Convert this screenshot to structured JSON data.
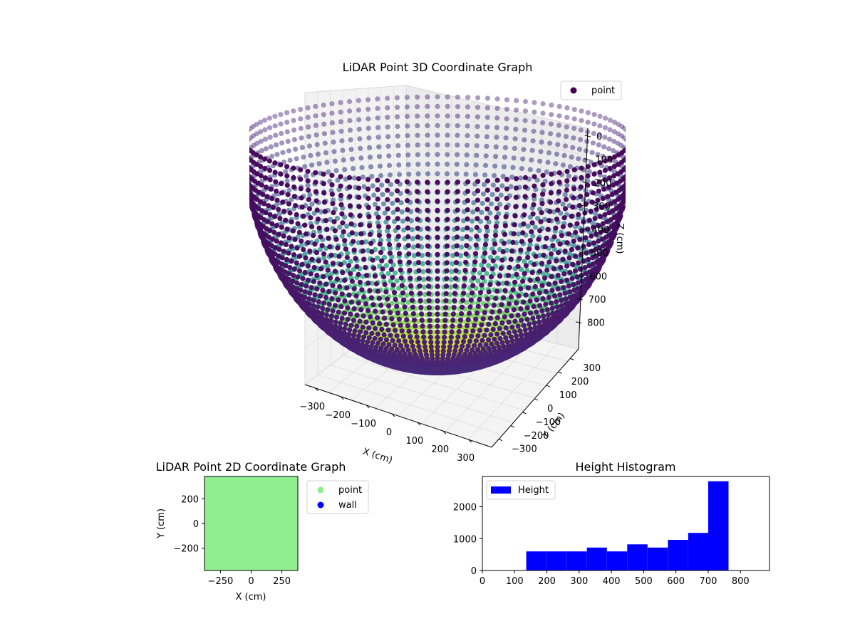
{
  "chart_data": [
    {
      "type": "scatter3d",
      "title": "LiDAR Point 3D Coordinate Graph",
      "xlabel": "X (cm)",
      "ylabel": "Y (cm)",
      "zlabel": "Z (cm)",
      "xticks": [
        "−300",
        "−200",
        "−100",
        "0",
        "100",
        "200",
        "300"
      ],
      "yticks": [
        "−300",
        "−200",
        "−100",
        "0",
        "100",
        "200",
        "300"
      ],
      "zticks": [
        "0",
        "100",
        "200",
        "300",
        "400",
        "500",
        "600",
        "700",
        "800"
      ],
      "zlim_inverted": [
        0,
        800
      ],
      "legend": {
        "label": "point",
        "placement": "upper right"
      },
      "colormap": "viridis",
      "shape": "hemispherical bowl of points, radius ~380 cm, depth ~760 cm",
      "grid": true
    },
    {
      "type": "scatter",
      "title": "LiDAR Point 2D Coordinate Graph",
      "xlabel": "X (cm)",
      "ylabel": "Y (cm)",
      "xticks": [
        "−250",
        "0",
        "250"
      ],
      "yticks": [
        "200",
        "0",
        "−200"
      ],
      "xlim": [
        -380,
        380
      ],
      "ylim": [
        -380,
        380
      ],
      "series": [
        {
          "name": "point",
          "color": "#90ee90"
        },
        {
          "name": "wall",
          "color": "#0000ff"
        }
      ],
      "legend": {
        "placement": "outside right"
      }
    },
    {
      "type": "bar",
      "title": "Height Histogram",
      "xlabel": "",
      "ylabel": "",
      "xlim": [
        0,
        890
      ],
      "ylim": [
        0,
        2950
      ],
      "xticks": [
        "0",
        "100",
        "200",
        "300",
        "400",
        "500",
        "600",
        "700",
        "800"
      ],
      "yticks": [
        "0",
        "1000",
        "2000"
      ],
      "bin_edges": [
        136,
        198,
        261,
        324,
        386,
        449,
        512,
        575,
        638,
        700,
        763
      ],
      "values": [
        600,
        600,
        600,
        720,
        600,
        820,
        720,
        960,
        1180,
        2800
      ],
      "color": "#0000ff",
      "legend": {
        "label": "Height",
        "placement": "upper left"
      }
    }
  ]
}
